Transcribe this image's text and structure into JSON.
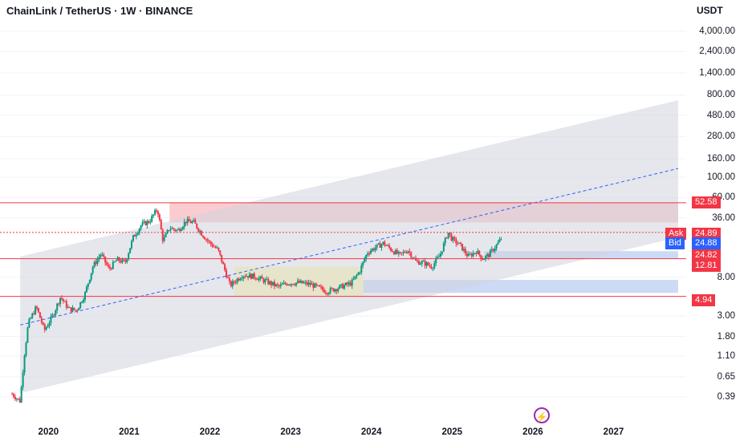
{
  "header": {
    "symbol": "ChainLink / TetherUS · 1W · BINANCE",
    "unit": "USDT"
  },
  "logo_icon": "lightning-bolt-icon",
  "chart_data": {
    "type": "candlestick",
    "title": "ChainLink / TetherUS · 1W · BINANCE",
    "scale": "log",
    "ylim": [
      0.3,
      5000
    ],
    "y_ticks": [
      "4,000.00",
      "2,400.00",
      "1,400.00",
      "800.00",
      "480.00",
      "280.00",
      "160.00",
      "100.00",
      "60.00",
      "36.00",
      "8.00",
      "3.00",
      "1.80",
      "1.10",
      "0.65",
      "0.39"
    ],
    "x_ticks": [
      "2020",
      "2021",
      "2022",
      "2023",
      "2024",
      "2025",
      "2026",
      "2027"
    ],
    "x_range": [
      2019.4,
      2027.9
    ],
    "price_tags": [
      {
        "label": "",
        "value": "52.58",
        "price": 52.58,
        "color": "#f23645"
      },
      {
        "label": "Ask",
        "value": "24.89",
        "price": 24.89,
        "color": "#f23645"
      },
      {
        "label": "Bid",
        "value": "24.88",
        "price": 24.88,
        "color": "#2962ff"
      },
      {
        "label": "",
        "value": "24.82",
        "price": 24.82,
        "color": "#f23645"
      },
      {
        "label": "",
        "value": "12.81",
        "price": 12.81,
        "color": "#f23645"
      },
      {
        "label": "",
        "value": "4.94",
        "price": 4.94,
        "color": "#f23645"
      }
    ],
    "horizontal_lines": [
      {
        "price": 52.58,
        "color": "#f23645"
      },
      {
        "price": 24.85,
        "color": "#f23645",
        "dashed": true
      },
      {
        "price": 12.81,
        "color": "#f23645"
      },
      {
        "price": 4.94,
        "color": "#f23645"
      }
    ],
    "channel": {
      "x_start": 2019.65,
      "x_end": 2027.8,
      "lower_start": 0.43,
      "lower_end": 22,
      "upper_start": 13.5,
      "upper_end": 700,
      "mid_start": 2.4,
      "mid_end": 125
    },
    "zones": [
      {
        "x0": 2021.5,
        "x1": 2027.8,
        "p0": 32,
        "p1": 52.58,
        "color": "#f8bbc0"
      },
      {
        "x0": 2022.3,
        "x1": 2023.9,
        "p0": 4.9,
        "p1": 10.5,
        "color": "#fff59d"
      },
      {
        "x0": 2025.4,
        "x1": 2027.8,
        "p0": 12.81,
        "p1": 15.5,
        "color": "#bbcdf3"
      },
      {
        "x0": 2023.9,
        "x1": 2027.8,
        "p0": 5.4,
        "p1": 7.5,
        "color": "#bbcdf3"
      }
    ],
    "ohlc_anchors": [
      [
        2019.55,
        0.42
      ],
      [
        2019.65,
        0.35
      ],
      [
        2019.7,
        1.1
      ],
      [
        2019.75,
        2.5
      ],
      [
        2019.85,
        3.8
      ],
      [
        2019.95,
        2.1
      ],
      [
        2020.05,
        3.0
      ],
      [
        2020.15,
        4.9
      ],
      [
        2020.25,
        3.6
      ],
      [
        2020.35,
        3.5
      ],
      [
        2020.45,
        5.2
      ],
      [
        2020.55,
        10.5
      ],
      [
        2020.65,
        14.5
      ],
      [
        2020.75,
        9.8
      ],
      [
        2020.85,
        12.5
      ],
      [
        2020.95,
        11.6
      ],
      [
        2021.05,
        22
      ],
      [
        2021.15,
        30
      ],
      [
        2021.25,
        33
      ],
      [
        2021.35,
        45
      ],
      [
        2021.42,
        20
      ],
      [
        2021.5,
        28
      ],
      [
        2021.6,
        26
      ],
      [
        2021.7,
        33
      ],
      [
        2021.8,
        32
      ],
      [
        2021.9,
        24
      ],
      [
        2022.0,
        19
      ],
      [
        2022.1,
        16
      ],
      [
        2022.25,
        6.5
      ],
      [
        2022.4,
        8.5
      ],
      [
        2022.55,
        8.2
      ],
      [
        2022.7,
        7.2
      ],
      [
        2022.85,
        6.3
      ],
      [
        2022.95,
        6.9
      ],
      [
        2023.1,
        7.0
      ],
      [
        2023.25,
        6.7
      ],
      [
        2023.45,
        5.6
      ],
      [
        2023.6,
        6.2
      ],
      [
        2023.75,
        6.9
      ],
      [
        2023.85,
        9.2
      ],
      [
        2023.95,
        15
      ],
      [
        2024.05,
        17
      ],
      [
        2024.15,
        19
      ],
      [
        2024.25,
        16
      ],
      [
        2024.35,
        14
      ],
      [
        2024.45,
        16
      ],
      [
        2024.55,
        12
      ],
      [
        2024.65,
        11.5
      ],
      [
        2024.75,
        10.5
      ],
      [
        2024.85,
        14
      ],
      [
        2024.95,
        25
      ],
      [
        2025.0,
        21
      ],
      [
        2025.1,
        18
      ],
      [
        2025.2,
        13.5
      ],
      [
        2025.3,
        15.5
      ],
      [
        2025.38,
        12.8
      ],
      [
        2025.45,
        14
      ],
      [
        2025.55,
        18
      ],
      [
        2025.62,
        22
      ]
    ]
  }
}
